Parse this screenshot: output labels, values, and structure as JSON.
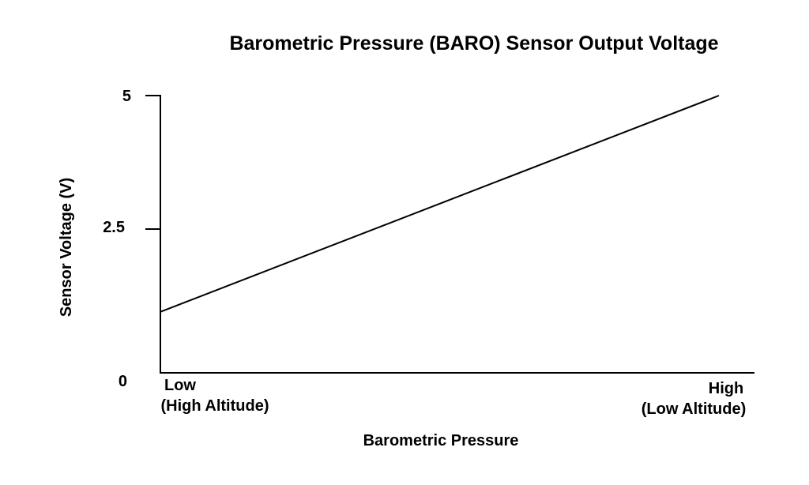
{
  "chart_data": {
    "type": "line",
    "title": "Barometric Pressure (BARO) Sensor Output Voltage",
    "xlabel": "Barometric Pressure",
    "ylabel": "Sensor Voltage (V)",
    "ylim": [
      0,
      5
    ],
    "y_ticks": [
      "0",
      "2.5",
      "5"
    ],
    "x_range": [
      0,
      1
    ],
    "x_end_labels": {
      "low": [
        "Low",
        "(High Altitude)"
      ],
      "high": [
        "High",
        "(Low Altitude)"
      ]
    },
    "grid": false,
    "legend": "none",
    "series": [
      {
        "x": [
          0,
          1
        ],
        "y": [
          1.1,
          5.0
        ]
      }
    ],
    "colors": {
      "line": "#000000",
      "axis": "#000000",
      "background": "#ffffff"
    }
  }
}
